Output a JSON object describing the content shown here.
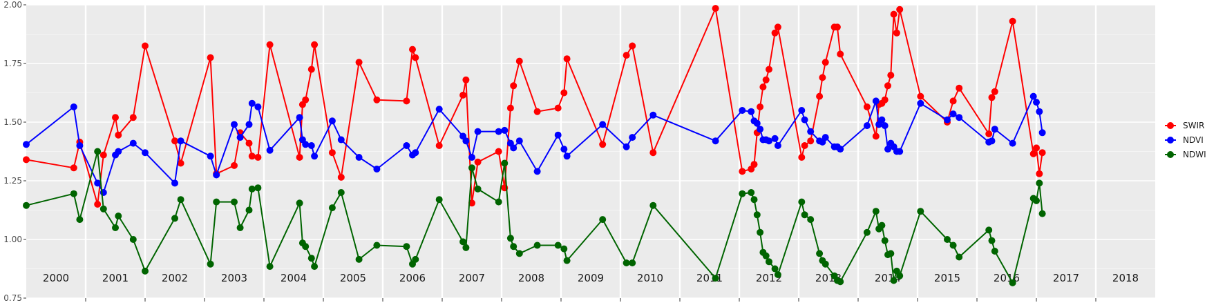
{
  "chart_data": {
    "type": "line",
    "title": "",
    "xlabel": "",
    "ylabel": "",
    "ylim": [
      0.75,
      2.0
    ],
    "yticks": [
      0.75,
      1.0,
      1.25,
      1.5,
      1.75,
      2.0
    ],
    "ytick_labels": [
      "0.75",
      "1.00",
      "1.25",
      "1.50",
      "1.75",
      "2.00"
    ],
    "xlim": [
      2000.0,
      2019.0
    ],
    "year_labels": [
      "2000",
      "2001",
      "2002",
      "2003",
      "2004",
      "2005",
      "2006",
      "2007",
      "2008",
      "2009",
      "2010",
      "2011",
      "2012",
      "2013",
      "2014",
      "2015",
      "2016",
      "2017",
      "2018"
    ],
    "grid": true,
    "legend_position": "right",
    "series": [
      {
        "name": "SWIR",
        "color": "#ff0000",
        "points": [
          [
            2000.0,
            1.34
          ],
          [
            2000.8,
            1.305
          ],
          [
            2000.9,
            1.415
          ],
          [
            2001.2,
            1.15
          ],
          [
            2001.3,
            1.36
          ],
          [
            2001.5,
            1.52
          ],
          [
            2001.55,
            1.445
          ],
          [
            2001.8,
            1.52
          ],
          [
            2002.0,
            1.825
          ],
          [
            2002.5,
            1.42
          ],
          [
            2002.6,
            1.325
          ],
          [
            2003.1,
            1.775
          ],
          [
            2003.2,
            1.28
          ],
          [
            2003.5,
            1.315
          ],
          [
            2003.6,
            1.455
          ],
          [
            2003.75,
            1.41
          ],
          [
            2003.8,
            1.355
          ],
          [
            2003.9,
            1.35
          ],
          [
            2004.1,
            1.83
          ],
          [
            2004.6,
            1.35
          ],
          [
            2004.65,
            1.575
          ],
          [
            2004.7,
            1.595
          ],
          [
            2004.8,
            1.725
          ],
          [
            2004.85,
            1.83
          ],
          [
            2005.15,
            1.37
          ],
          [
            2005.3,
            1.265
          ],
          [
            2005.6,
            1.755
          ],
          [
            2005.9,
            1.595
          ],
          [
            2006.4,
            1.59
          ],
          [
            2006.5,
            1.81
          ],
          [
            2006.55,
            1.775
          ],
          [
            2006.95,
            1.4
          ],
          [
            2007.35,
            1.615
          ],
          [
            2007.4,
            1.68
          ],
          [
            2007.5,
            1.155
          ],
          [
            2007.6,
            1.33
          ],
          [
            2007.95,
            1.375
          ],
          [
            2008.05,
            1.22
          ],
          [
            2008.15,
            1.56
          ],
          [
            2008.2,
            1.655
          ],
          [
            2008.3,
            1.76
          ],
          [
            2008.6,
            1.545
          ],
          [
            2008.95,
            1.56
          ],
          [
            2009.05,
            1.625
          ],
          [
            2009.1,
            1.77
          ],
          [
            2009.7,
            1.405
          ],
          [
            2010.1,
            1.785
          ],
          [
            2010.2,
            1.825
          ],
          [
            2010.55,
            1.37
          ],
          [
            2011.6,
            1.985
          ],
          [
            2012.05,
            1.29
          ],
          [
            2012.2,
            1.3
          ],
          [
            2012.25,
            1.32
          ],
          [
            2012.3,
            1.455
          ],
          [
            2012.35,
            1.565
          ],
          [
            2012.4,
            1.65
          ],
          [
            2012.45,
            1.68
          ],
          [
            2012.5,
            1.725
          ],
          [
            2012.6,
            1.88
          ],
          [
            2012.65,
            1.905
          ],
          [
            2013.05,
            1.35
          ],
          [
            2013.1,
            1.4
          ],
          [
            2013.2,
            1.42
          ],
          [
            2013.35,
            1.61
          ],
          [
            2013.4,
            1.69
          ],
          [
            2013.45,
            1.755
          ],
          [
            2013.6,
            1.905
          ],
          [
            2013.65,
            1.905
          ],
          [
            2013.7,
            1.79
          ],
          [
            2014.15,
            1.565
          ],
          [
            2014.3,
            1.44
          ],
          [
            2014.35,
            1.575
          ],
          [
            2014.4,
            1.58
          ],
          [
            2014.45,
            1.595
          ],
          [
            2014.5,
            1.655
          ],
          [
            2014.55,
            1.7
          ],
          [
            2014.6,
            1.96
          ],
          [
            2014.65,
            1.88
          ],
          [
            2014.7,
            1.98
          ],
          [
            2015.05,
            1.61
          ],
          [
            2015.5,
            1.5
          ],
          [
            2015.6,
            1.59
          ],
          [
            2015.7,
            1.645
          ],
          [
            2016.2,
            1.45
          ],
          [
            2016.25,
            1.605
          ],
          [
            2016.3,
            1.63
          ],
          [
            2016.6,
            1.93
          ],
          [
            2016.95,
            1.365
          ],
          [
            2017.0,
            1.39
          ],
          [
            2017.05,
            1.28
          ],
          [
            2017.1,
            1.37
          ]
        ]
      },
      {
        "name": "NDVI",
        "color": "#0000ff",
        "points": [
          [
            2000.0,
            1.405
          ],
          [
            2000.8,
            1.565
          ],
          [
            2000.9,
            1.4
          ],
          [
            2001.2,
            1.24
          ],
          [
            2001.3,
            1.2
          ],
          [
            2001.5,
            1.36
          ],
          [
            2001.55,
            1.375
          ],
          [
            2001.8,
            1.41
          ],
          [
            2002.0,
            1.37
          ],
          [
            2002.5,
            1.24
          ],
          [
            2002.6,
            1.42
          ],
          [
            2003.1,
            1.355
          ],
          [
            2003.2,
            1.275
          ],
          [
            2003.5,
            1.49
          ],
          [
            2003.6,
            1.435
          ],
          [
            2003.75,
            1.49
          ],
          [
            2003.8,
            1.58
          ],
          [
            2003.9,
            1.565
          ],
          [
            2004.1,
            1.38
          ],
          [
            2004.6,
            1.52
          ],
          [
            2004.65,
            1.425
          ],
          [
            2004.7,
            1.405
          ],
          [
            2004.8,
            1.4
          ],
          [
            2004.85,
            1.355
          ],
          [
            2005.15,
            1.505
          ],
          [
            2005.3,
            1.425
          ],
          [
            2005.6,
            1.35
          ],
          [
            2005.9,
            1.3
          ],
          [
            2006.4,
            1.4
          ],
          [
            2006.5,
            1.36
          ],
          [
            2006.55,
            1.37
          ],
          [
            2006.95,
            1.555
          ],
          [
            2007.35,
            1.44
          ],
          [
            2007.4,
            1.42
          ],
          [
            2007.5,
            1.35
          ],
          [
            2007.6,
            1.46
          ],
          [
            2007.95,
            1.46
          ],
          [
            2008.05,
            1.465
          ],
          [
            2008.15,
            1.41
          ],
          [
            2008.2,
            1.39
          ],
          [
            2008.3,
            1.42
          ],
          [
            2008.6,
            1.29
          ],
          [
            2008.95,
            1.445
          ],
          [
            2009.05,
            1.385
          ],
          [
            2009.1,
            1.355
          ],
          [
            2009.7,
            1.49
          ],
          [
            2010.1,
            1.395
          ],
          [
            2010.2,
            1.435
          ],
          [
            2010.55,
            1.53
          ],
          [
            2011.6,
            1.42
          ],
          [
            2012.05,
            1.55
          ],
          [
            2012.2,
            1.545
          ],
          [
            2012.25,
            1.505
          ],
          [
            2012.3,
            1.495
          ],
          [
            2012.35,
            1.47
          ],
          [
            2012.4,
            1.425
          ],
          [
            2012.45,
            1.425
          ],
          [
            2012.5,
            1.42
          ],
          [
            2012.6,
            1.43
          ],
          [
            2012.65,
            1.4
          ],
          [
            2013.05,
            1.55
          ],
          [
            2013.1,
            1.51
          ],
          [
            2013.2,
            1.46
          ],
          [
            2013.35,
            1.42
          ],
          [
            2013.4,
            1.415
          ],
          [
            2013.45,
            1.435
          ],
          [
            2013.6,
            1.395
          ],
          [
            2013.65,
            1.395
          ],
          [
            2013.7,
            1.385
          ],
          [
            2014.15,
            1.485
          ],
          [
            2014.3,
            1.59
          ],
          [
            2014.35,
            1.49
          ],
          [
            2014.4,
            1.51
          ],
          [
            2014.45,
            1.485
          ],
          [
            2014.5,
            1.385
          ],
          [
            2014.55,
            1.41
          ],
          [
            2014.6,
            1.395
          ],
          [
            2014.65,
            1.375
          ],
          [
            2014.7,
            1.375
          ],
          [
            2015.05,
            1.58
          ],
          [
            2015.5,
            1.51
          ],
          [
            2015.6,
            1.535
          ],
          [
            2015.7,
            1.52
          ],
          [
            2016.2,
            1.415
          ],
          [
            2016.25,
            1.42
          ],
          [
            2016.3,
            1.47
          ],
          [
            2016.6,
            1.41
          ],
          [
            2016.95,
            1.61
          ],
          [
            2017.0,
            1.585
          ],
          [
            2017.05,
            1.545
          ],
          [
            2017.1,
            1.455
          ]
        ]
      },
      {
        "name": "NDWI",
        "color": "#006400",
        "points": [
          [
            2000.0,
            1.145
          ],
          [
            2000.8,
            1.195
          ],
          [
            2000.9,
            1.085
          ],
          [
            2001.2,
            1.375
          ],
          [
            2001.3,
            1.13
          ],
          [
            2001.5,
            1.05
          ],
          [
            2001.55,
            1.1
          ],
          [
            2001.8,
            1.0
          ],
          [
            2002.0,
            0.865
          ],
          [
            2002.5,
            1.09
          ],
          [
            2002.6,
            1.17
          ],
          [
            2003.1,
            0.895
          ],
          [
            2003.2,
            1.16
          ],
          [
            2003.5,
            1.16
          ],
          [
            2003.6,
            1.05
          ],
          [
            2003.75,
            1.125
          ],
          [
            2003.8,
            1.215
          ],
          [
            2003.9,
            1.22
          ],
          [
            2004.1,
            0.885
          ],
          [
            2004.6,
            1.155
          ],
          [
            2004.65,
            0.985
          ],
          [
            2004.7,
            0.97
          ],
          [
            2004.8,
            0.92
          ],
          [
            2004.85,
            0.885
          ],
          [
            2005.15,
            1.135
          ],
          [
            2005.3,
            1.2
          ],
          [
            2005.6,
            0.915
          ],
          [
            2005.9,
            0.975
          ],
          [
            2006.4,
            0.97
          ],
          [
            2006.5,
            0.895
          ],
          [
            2006.55,
            0.915
          ],
          [
            2006.95,
            1.17
          ],
          [
            2007.35,
            0.99
          ],
          [
            2007.4,
            0.965
          ],
          [
            2007.5,
            1.305
          ],
          [
            2007.6,
            1.215
          ],
          [
            2007.95,
            1.16
          ],
          [
            2008.05,
            1.325
          ],
          [
            2008.15,
            1.005
          ],
          [
            2008.2,
            0.97
          ],
          [
            2008.3,
            0.94
          ],
          [
            2008.6,
            0.975
          ],
          [
            2008.95,
            0.975
          ],
          [
            2009.05,
            0.96
          ],
          [
            2009.1,
            0.91
          ],
          [
            2009.7,
            1.085
          ],
          [
            2010.1,
            0.9
          ],
          [
            2010.2,
            0.9
          ],
          [
            2010.55,
            1.145
          ],
          [
            2011.6,
            0.835
          ],
          [
            2012.05,
            1.195
          ],
          [
            2012.2,
            1.2
          ],
          [
            2012.25,
            1.17
          ],
          [
            2012.3,
            1.105
          ],
          [
            2012.35,
            1.03
          ],
          [
            2012.4,
            0.945
          ],
          [
            2012.45,
            0.93
          ],
          [
            2012.5,
            0.905
          ],
          [
            2012.6,
            0.875
          ],
          [
            2012.65,
            0.85
          ],
          [
            2013.05,
            1.16
          ],
          [
            2013.1,
            1.105
          ],
          [
            2013.2,
            1.085
          ],
          [
            2013.35,
            0.94
          ],
          [
            2013.4,
            0.91
          ],
          [
            2013.45,
            0.895
          ],
          [
            2013.6,
            0.845
          ],
          [
            2013.65,
            0.825
          ],
          [
            2013.7,
            0.82
          ],
          [
            2014.15,
            1.03
          ],
          [
            2014.3,
            1.12
          ],
          [
            2014.35,
            1.045
          ],
          [
            2014.4,
            1.06
          ],
          [
            2014.45,
            0.995
          ],
          [
            2014.5,
            0.935
          ],
          [
            2014.55,
            0.94
          ],
          [
            2014.6,
            0.825
          ],
          [
            2014.65,
            0.865
          ],
          [
            2014.7,
            0.845
          ],
          [
            2015.05,
            1.12
          ],
          [
            2015.5,
            1.0
          ],
          [
            2015.6,
            0.975
          ],
          [
            2015.7,
            0.925
          ],
          [
            2016.2,
            1.04
          ],
          [
            2016.25,
            0.995
          ],
          [
            2016.3,
            0.95
          ],
          [
            2016.6,
            0.815
          ],
          [
            2016.95,
            1.175
          ],
          [
            2017.0,
            1.165
          ],
          [
            2017.05,
            1.24
          ],
          [
            2017.1,
            1.11
          ]
        ]
      }
    ]
  }
}
